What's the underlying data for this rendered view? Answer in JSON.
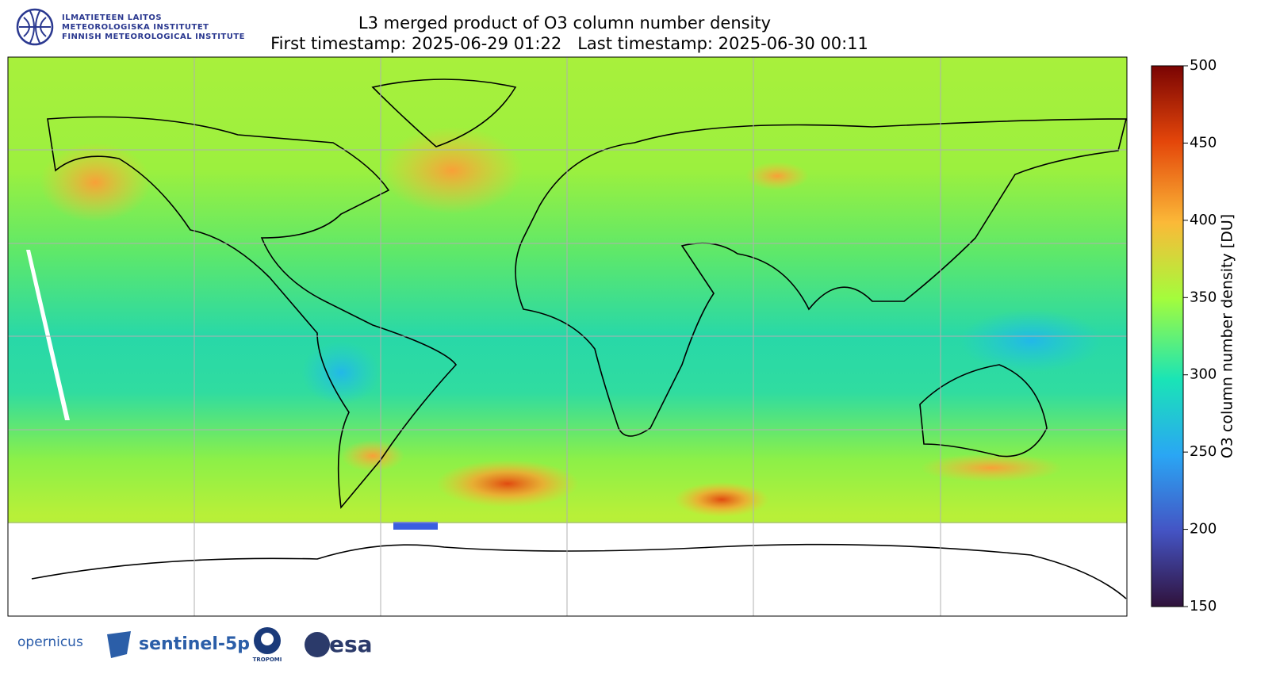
{
  "header": {
    "logo": [
      "ILMATIETEEN LAITOS",
      "METEOROLOGISKA INSTITUTET",
      "FINNISH METEOROLOGICAL INSTITUTE"
    ],
    "title": "L3 merged product of O3 column number density",
    "subtitle": "First timestamp: 2025-06-29 01:22   Last timestamp: 2025-06-30 00:11"
  },
  "colorbar": {
    "label": "O3 column number density [DU]",
    "lim": [
      150,
      500
    ],
    "ticks": [
      150,
      200,
      250,
      300,
      350,
      400,
      450,
      500
    ]
  },
  "footer": [
    "opernicus",
    "sentinel-5p",
    "TROPOMI",
    "esa"
  ]
}
